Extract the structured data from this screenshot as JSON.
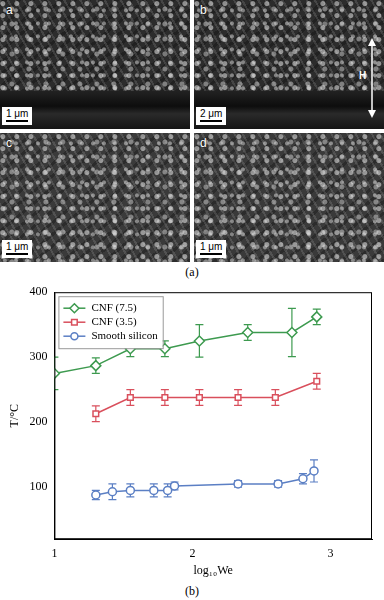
{
  "figure": {
    "panels": [
      {
        "label": "a",
        "scale_bar": "1 μm"
      },
      {
        "label": "b",
        "scale_bar": "2 μm",
        "arrow_label": "H"
      },
      {
        "label": "c",
        "scale_bar": "1 μm"
      },
      {
        "label": "d",
        "scale_bar": "1 μm"
      }
    ],
    "captions": [
      "(a)",
      "(b)"
    ]
  },
  "chart_data": {
    "type": "line",
    "x_label": "log₁₀We",
    "y_label": "T/°C",
    "xlim": [
      1,
      3.3
    ],
    "xticks": [
      1,
      2,
      3
    ],
    "ylim": [
      20,
      400
    ],
    "yticks": [
      100,
      200,
      300,
      400
    ],
    "grid": false,
    "legend": "upper left",
    "series": [
      {
        "name": "CNF (7.5)",
        "color": "#3d9a4f",
        "marker": "diamond",
        "line_style": "solid",
        "x": [
          1.0,
          1.3,
          1.55,
          1.8,
          2.05,
          2.4,
          2.72,
          2.9
        ],
        "values": [
          275,
          287,
          313,
          313,
          325,
          338,
          338,
          362
        ],
        "errors": [
          25,
          12,
          12,
          12,
          25,
          12,
          37,
          12
        ]
      },
      {
        "name": "CNF (3.5)",
        "color": "#d94f5c",
        "marker": "square",
        "line_style": "solid",
        "x": [
          1.3,
          1.55,
          1.8,
          2.05,
          2.33,
          2.6,
          2.9
        ],
        "values": [
          213,
          238,
          238,
          238,
          238,
          238,
          263
        ],
        "errors": [
          12,
          12,
          12,
          12,
          12,
          12,
          12
        ]
      },
      {
        "name": "Smooth silicon",
        "color": "#5b7fc4",
        "marker": "circle",
        "line_style": "solid",
        "x": [
          1.3,
          1.42,
          1.55,
          1.72,
          1.82,
          1.87,
          2.33,
          2.62,
          2.8,
          2.88
        ],
        "values": [
          88,
          93,
          95,
          95,
          95,
          102,
          105,
          105,
          113,
          125
        ],
        "errors": [
          7,
          12,
          10,
          10,
          10,
          6,
          5,
          5,
          8,
          17
        ]
      }
    ]
  }
}
